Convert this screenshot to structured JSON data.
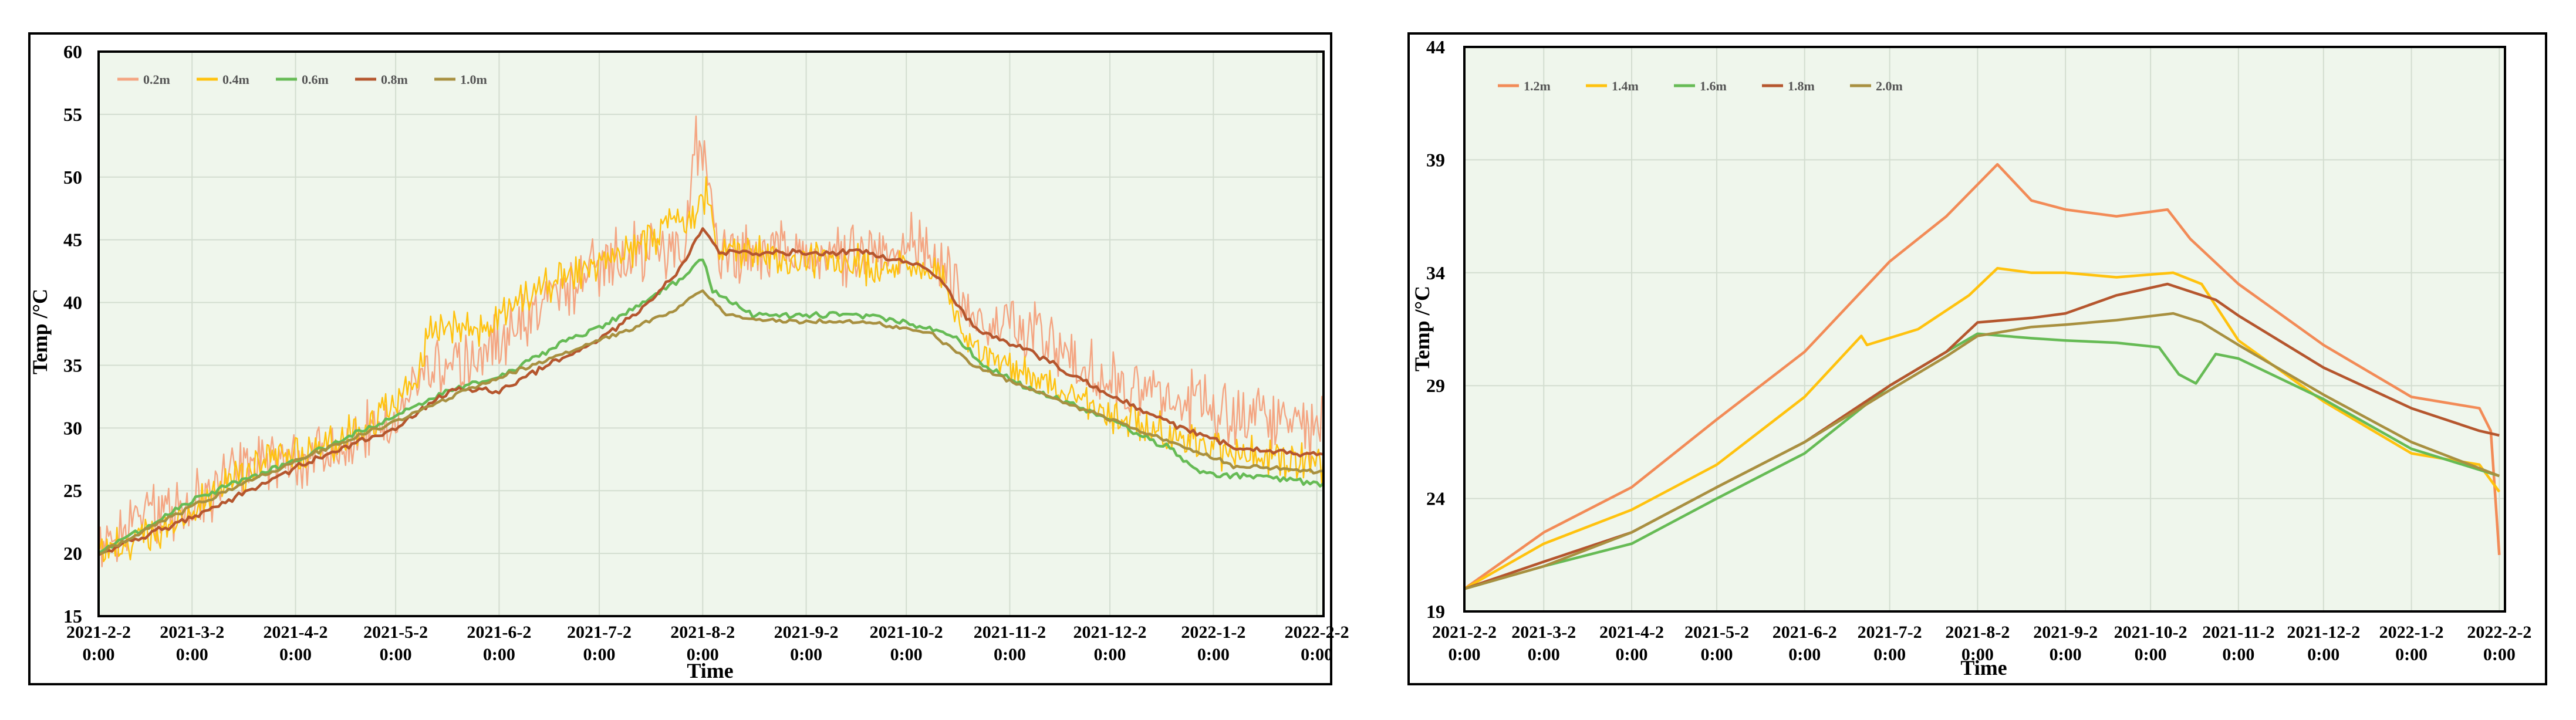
{
  "chart_data": [
    {
      "type": "line",
      "name": "left",
      "xlabel": "Time",
      "ylabel": "Temp /°C",
      "ylim": [
        15,
        60
      ],
      "yticks": [
        15,
        20,
        25,
        30,
        35,
        40,
        45,
        50,
        55,
        60
      ],
      "xlim": [
        0,
        367
      ],
      "xtick_labels": [
        {
          "d": 0,
          "date": "2021-2-2",
          "time": "0:00"
        },
        {
          "d": 28,
          "date": "2021-3-2",
          "time": "0:00"
        },
        {
          "d": 59,
          "date": "2021-4-2",
          "time": "0:00"
        },
        {
          "d": 89,
          "date": "2021-5-2",
          "time": "0:00"
        },
        {
          "d": 120,
          "date": "2021-6-2",
          "time": "0:00"
        },
        {
          "d": 150,
          "date": "2021-7-2",
          "time": "0:00"
        },
        {
          "d": 181,
          "date": "2021-8-2",
          "time": "0:00"
        },
        {
          "d": 212,
          "date": "2021-9-2",
          "time": "0:00"
        },
        {
          "d": 242,
          "date": "2021-10-2",
          "time": "0:00"
        },
        {
          "d": 273,
          "date": "2021-11-2",
          "time": "0:00"
        },
        {
          "d": 303,
          "date": "2021-12-2",
          "time": "0:00"
        },
        {
          "d": 334,
          "date": "2022-1-2",
          "time": "0:00"
        },
        {
          "d": 365,
          "date": "2022-2-2",
          "time": "0:00"
        }
      ],
      "series": [
        {
          "name": "0.2m",
          "color": "#F4A582",
          "noise": 3.2,
          "points": [
            [
              0,
              20
            ],
            [
              15,
              23.5
            ],
            [
              30,
              24
            ],
            [
              45,
              27
            ],
            [
              60,
              27.5
            ],
            [
              75,
              28.5
            ],
            [
              89,
              31
            ],
            [
              95,
              34
            ],
            [
              110,
              35
            ],
            [
              125,
              38
            ],
            [
              140,
              41
            ],
            [
              145,
              42
            ],
            [
              156,
              44
            ],
            [
              176,
              44.5
            ],
            [
              178,
              53
            ],
            [
              181,
              52
            ],
            [
              187,
              43
            ],
            [
              200,
              44
            ],
            [
              215,
              44
            ],
            [
              230,
              44
            ],
            [
              245,
              45
            ],
            [
              252,
              43
            ],
            [
              262,
              39
            ],
            [
              280,
              37.5
            ],
            [
              300,
              34
            ],
            [
              320,
              33
            ],
            [
              340,
              31
            ],
            [
              367,
              30
            ]
          ]
        },
        {
          "name": "0.4m",
          "color": "#FFC20E",
          "noise": 1.8,
          "points": [
            [
              0,
              20
            ],
            [
              20,
              22
            ],
            [
              40,
              26
            ],
            [
              60,
              28
            ],
            [
              80,
              30
            ],
            [
              95,
              34
            ],
            [
              100,
              38
            ],
            [
              115,
              38
            ],
            [
              125,
              40
            ],
            [
              140,
              42
            ],
            [
              150,
              43
            ],
            [
              181,
              47.5
            ],
            [
              182,
              49.5
            ],
            [
              185,
              45
            ],
            [
              190,
              44
            ],
            [
              210,
              43.5
            ],
            [
              230,
              43
            ],
            [
              245,
              43
            ],
            [
              252,
              42
            ],
            [
              262,
              36
            ],
            [
              280,
              34
            ],
            [
              300,
              31.5
            ],
            [
              320,
              29.5
            ],
            [
              340,
              28
            ],
            [
              367,
              27
            ]
          ]
        },
        {
          "name": "0.6m",
          "color": "#66BB55",
          "noise": 0.3,
          "points": [
            [
              0,
              20
            ],
            [
              30,
              24.5
            ],
            [
              60,
              27.5
            ],
            [
              89,
              31
            ],
            [
              105,
              33
            ],
            [
              120,
              34
            ],
            [
              140,
              37
            ],
            [
              150,
              38
            ],
            [
              176,
              42
            ],
            [
              181,
              43.5
            ],
            [
              184,
              41
            ],
            [
              190,
              40
            ],
            [
              196,
              39
            ],
            [
              210,
              39
            ],
            [
              230,
              39
            ],
            [
              250,
              38
            ],
            [
              258,
              37
            ],
            [
              265,
              35
            ],
            [
              280,
              33
            ],
            [
              300,
              31
            ],
            [
              320,
              28.5
            ],
            [
              330,
              26.5
            ],
            [
              350,
              26
            ],
            [
              367,
              25.5
            ]
          ]
        },
        {
          "name": "0.8m",
          "color": "#B5562E",
          "noise": 0.3,
          "points": [
            [
              0,
              20
            ],
            [
              30,
              23
            ],
            [
              60,
              27
            ],
            [
              89,
              30
            ],
            [
              105,
              33
            ],
            [
              120,
              33
            ],
            [
              135,
              35
            ],
            [
              150,
              37
            ],
            [
              165,
              40
            ],
            [
              175,
              43
            ],
            [
              181,
              46
            ],
            [
              186,
              44
            ],
            [
              200,
              44
            ],
            [
              230,
              44
            ],
            [
              245,
              43
            ],
            [
              252,
              42
            ],
            [
              262,
              38
            ],
            [
              280,
              36
            ],
            [
              300,
              33
            ],
            [
              320,
              30.5
            ],
            [
              340,
              28.5
            ],
            [
              367,
              27.8
            ]
          ]
        },
        {
          "name": "1.0m",
          "color": "#A89040",
          "noise": 0.2,
          "points": [
            [
              0,
              20
            ],
            [
              30,
              24
            ],
            [
              60,
              27.5
            ],
            [
              89,
              30.5
            ],
            [
              110,
              33
            ],
            [
              130,
              35
            ],
            [
              150,
              37
            ],
            [
              170,
              39
            ],
            [
              181,
              41
            ],
            [
              188,
              39
            ],
            [
              205,
              38.5
            ],
            [
              230,
              38.5
            ],
            [
              250,
              37.5
            ],
            [
              262,
              35
            ],
            [
              280,
              33
            ],
            [
              300,
              31
            ],
            [
              320,
              29
            ],
            [
              340,
              27
            ],
            [
              367,
              26.5
            ]
          ]
        }
      ]
    },
    {
      "type": "line",
      "name": "right",
      "xlabel": "Time",
      "ylabel": "Temp /°C",
      "ylim": [
        19,
        44
      ],
      "yticks": [
        19,
        24,
        29,
        34,
        39,
        44
      ],
      "xlim": [
        0,
        367
      ],
      "xtick_labels": [
        {
          "d": 0,
          "date": "2021-2-2",
          "time": "0:00"
        },
        {
          "d": 28,
          "date": "2021-3-2",
          "time": "0:00"
        },
        {
          "d": 59,
          "date": "2021-4-2",
          "time": "0:00"
        },
        {
          "d": 89,
          "date": "2021-5-2",
          "time": "0:00"
        },
        {
          "d": 120,
          "date": "2021-6-2",
          "time": "0:00"
        },
        {
          "d": 150,
          "date": "2021-7-2",
          "time": "0:00"
        },
        {
          "d": 181,
          "date": "2021-8-2",
          "time": "0:00"
        },
        {
          "d": 212,
          "date": "2021-9-2",
          "time": "0:00"
        },
        {
          "d": 242,
          "date": "2021-10-2",
          "time": "0:00"
        },
        {
          "d": 273,
          "date": "2021-11-2",
          "time": "0:00"
        },
        {
          "d": 303,
          "date": "2021-12-2",
          "time": "0:00"
        },
        {
          "d": 334,
          "date": "2022-1-2",
          "time": "0:00"
        },
        {
          "d": 365,
          "date": "2022-2-2",
          "time": "0:00"
        }
      ],
      "series": [
        {
          "name": "1.2m",
          "color": "#F28B57",
          "noise": 0,
          "points": [
            [
              0,
              20
            ],
            [
              28,
              22.5
            ],
            [
              59,
              24.5
            ],
            [
              89,
              27.5
            ],
            [
              120,
              30.5
            ],
            [
              150,
              34.5
            ],
            [
              170,
              36.5
            ],
            [
              188,
              38.8
            ],
            [
              200,
              37.2
            ],
            [
              212,
              36.8
            ],
            [
              230,
              36.5
            ],
            [
              248,
              36.8
            ],
            [
              256,
              35.5
            ],
            [
              273,
              33.5
            ],
            [
              303,
              30.8
            ],
            [
              334,
              28.5
            ],
            [
              358,
              28
            ],
            [
              362,
              27
            ],
            [
              365,
              21.5
            ]
          ]
        },
        {
          "name": "1.4m",
          "color": "#FFC20E",
          "noise": 0,
          "points": [
            [
              0,
              20
            ],
            [
              28,
              22
            ],
            [
              59,
              23.5
            ],
            [
              89,
              25.5
            ],
            [
              120,
              28.5
            ],
            [
              140,
              31.2
            ],
            [
              142,
              30.8
            ],
            [
              160,
              31.5
            ],
            [
              178,
              33
            ],
            [
              188,
              34.2
            ],
            [
              200,
              34
            ],
            [
              212,
              34
            ],
            [
              230,
              33.8
            ],
            [
              250,
              34
            ],
            [
              260,
              33.5
            ],
            [
              273,
              31
            ],
            [
              303,
              28.3
            ],
            [
              334,
              26
            ],
            [
              358,
              25.5
            ],
            [
              365,
              24.3
            ]
          ]
        },
        {
          "name": "1.6m",
          "color": "#66BB55",
          "noise": 0,
          "points": [
            [
              0,
              20
            ],
            [
              28,
              21
            ],
            [
              59,
              22
            ],
            [
              89,
              24
            ],
            [
              120,
              26
            ],
            [
              150,
              29
            ],
            [
              170,
              30.5
            ],
            [
              181,
              31.3
            ],
            [
              200,
              31.1
            ],
            [
              212,
              31
            ],
            [
              230,
              30.9
            ],
            [
              245,
              30.7
            ],
            [
              252,
              29.5
            ],
            [
              258,
              29.1
            ],
            [
              265,
              30.4
            ],
            [
              273,
              30.2
            ],
            [
              303,
              28.4
            ],
            [
              334,
              26.2
            ],
            [
              365,
              25
            ]
          ]
        },
        {
          "name": "1.8m",
          "color": "#B5562E",
          "noise": 0,
          "points": [
            [
              0,
              20
            ],
            [
              28,
              21.2
            ],
            [
              59,
              22.5
            ],
            [
              89,
              24.5
            ],
            [
              120,
              26.5
            ],
            [
              150,
              29
            ],
            [
              170,
              30.5
            ],
            [
              181,
              31.8
            ],
            [
              200,
              32
            ],
            [
              212,
              32.2
            ],
            [
              230,
              33
            ],
            [
              248,
              33.5
            ],
            [
              265,
              32.8
            ],
            [
              273,
              32.1
            ],
            [
              303,
              29.8
            ],
            [
              334,
              28
            ],
            [
              358,
              27
            ],
            [
              365,
              26.8
            ]
          ]
        },
        {
          "name": "2.0m",
          "color": "#A89040",
          "noise": 0,
          "points": [
            [
              0,
              20
            ],
            [
              28,
              21
            ],
            [
              59,
              22.5
            ],
            [
              89,
              24.5
            ],
            [
              120,
              26.5
            ],
            [
              150,
              28.8
            ],
            [
              170,
              30.3
            ],
            [
              181,
              31.2
            ],
            [
              200,
              31.6
            ],
            [
              212,
              31.7
            ],
            [
              230,
              31.9
            ],
            [
              250,
              32.2
            ],
            [
              260,
              31.8
            ],
            [
              273,
              30.8
            ],
            [
              303,
              28.6
            ],
            [
              334,
              26.5
            ],
            [
              365,
              25
            ]
          ]
        }
      ]
    }
  ]
}
